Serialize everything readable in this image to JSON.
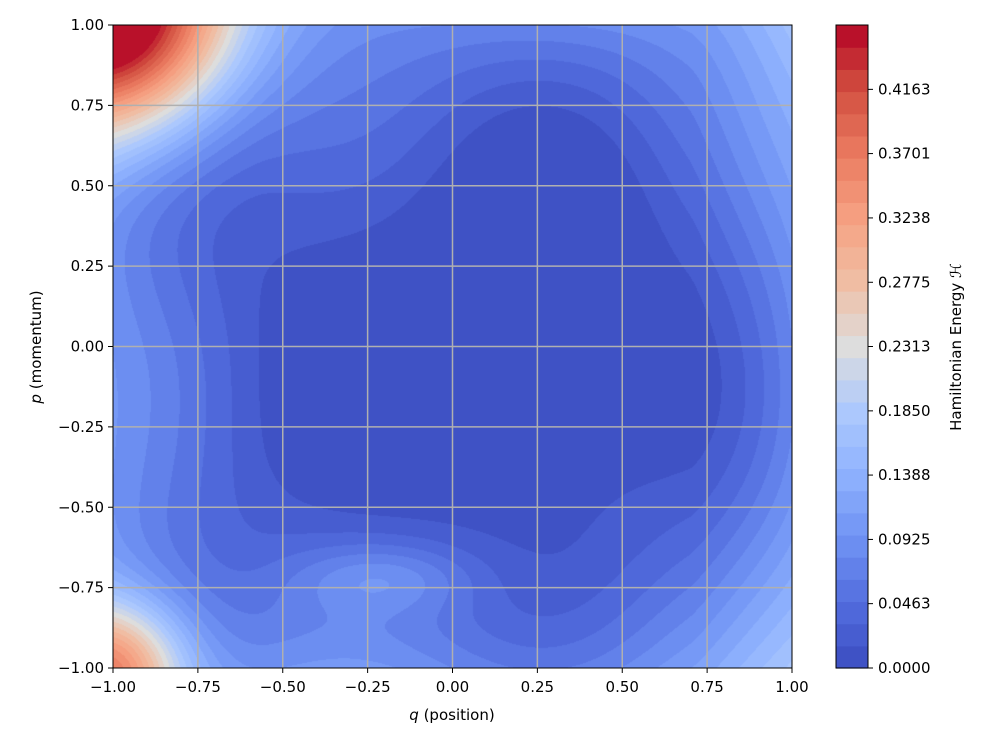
{
  "chart_data": {
    "type": "heatmap",
    "subtype": "filled-contour",
    "title": "",
    "xlabel": {
      "var": "q",
      "rest": " (position)"
    },
    "ylabel": {
      "var": "p",
      "rest": " (momentum)"
    },
    "xlim": [
      -1.0,
      1.0
    ],
    "ylim": [
      -1.0,
      1.0
    ],
    "x_ticks": [
      "−1.00",
      "−0.75",
      "−0.50",
      "−0.25",
      "0.00",
      "0.25",
      "0.50",
      "0.75",
      "1.00"
    ],
    "y_ticks": [
      "−1.00",
      "−0.75",
      "−0.50",
      "−0.25",
      "0.00",
      "0.25",
      "0.50",
      "0.75",
      "1.00"
    ],
    "grid": true,
    "colormap": "coolwarm",
    "colorbar": {
      "label": "Hamiltonian Energy ℋ",
      "range": [
        0.0,
        0.4626
      ],
      "levels": 29,
      "tick_values": [
        0.0,
        0.0463,
        0.0925,
        0.1388,
        0.185,
        0.2313,
        0.2775,
        0.3238,
        0.3701,
        0.4163
      ],
      "ticks": [
        "0.0000",
        "0.0463",
        "0.0925",
        "0.1388",
        "0.1850",
        "0.2313",
        "0.2775",
        "0.3238",
        "0.3701",
        "0.4163"
      ]
    },
    "approx_values": {
      "corner_top_left": 0.43,
      "corner_bottom_left": 0.24,
      "corner_top_right": 0.13,
      "corner_bottom_right": 0.13,
      "center_minimum_region": 0.0
    }
  }
}
